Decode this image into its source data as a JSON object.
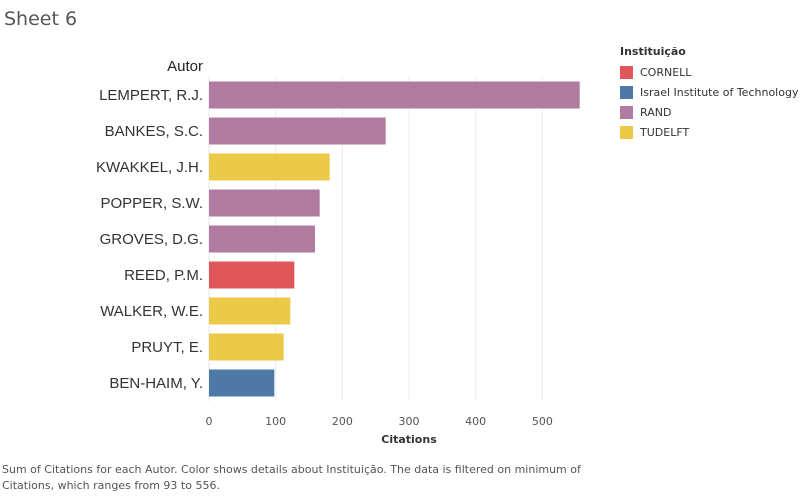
{
  "sheet": {
    "title": "Sheet 6"
  },
  "legend": {
    "title": "Instituição",
    "items": [
      {
        "label": "CORNELL",
        "color": "#e15759"
      },
      {
        "label": "Israel Institute of Technology",
        "color": "#4e79a7"
      },
      {
        "label": "RAND",
        "color": "#b07aa1"
      },
      {
        "label": "TUDELFT",
        "color": "#edc948"
      }
    ]
  },
  "caption": "Sum of Citations for each Autor.  Color shows details about Instituição. The data is filtered on minimum of Citations, which ranges from 93 to 556.",
  "chart_data": {
    "type": "bar",
    "orientation": "horizontal",
    "row_header": "Autor",
    "xlabel": "Citations",
    "xlim": [
      0,
      600
    ],
    "xticks": [
      0,
      100,
      200,
      300,
      400,
      500
    ],
    "grid": true,
    "legend_position": "top-right",
    "categories": [
      "LEMPERT, R.J.",
      "BANKES, S.C.",
      "KWAKKEL, J.H.",
      "POPPER, S.W.",
      "GROVES, D.G.",
      "REED, P.M.",
      "WALKER, W.E.",
      "PRUYT, E.",
      "BEN-HAIM, Y."
    ],
    "values": [
      556,
      265,
      181,
      166,
      159,
      128,
      122,
      112,
      98
    ],
    "groups": [
      "RAND",
      "RAND",
      "TUDELFT",
      "RAND",
      "RAND",
      "CORNELL",
      "TUDELFT",
      "TUDELFT",
      "Israel Institute of Technology"
    ]
  }
}
